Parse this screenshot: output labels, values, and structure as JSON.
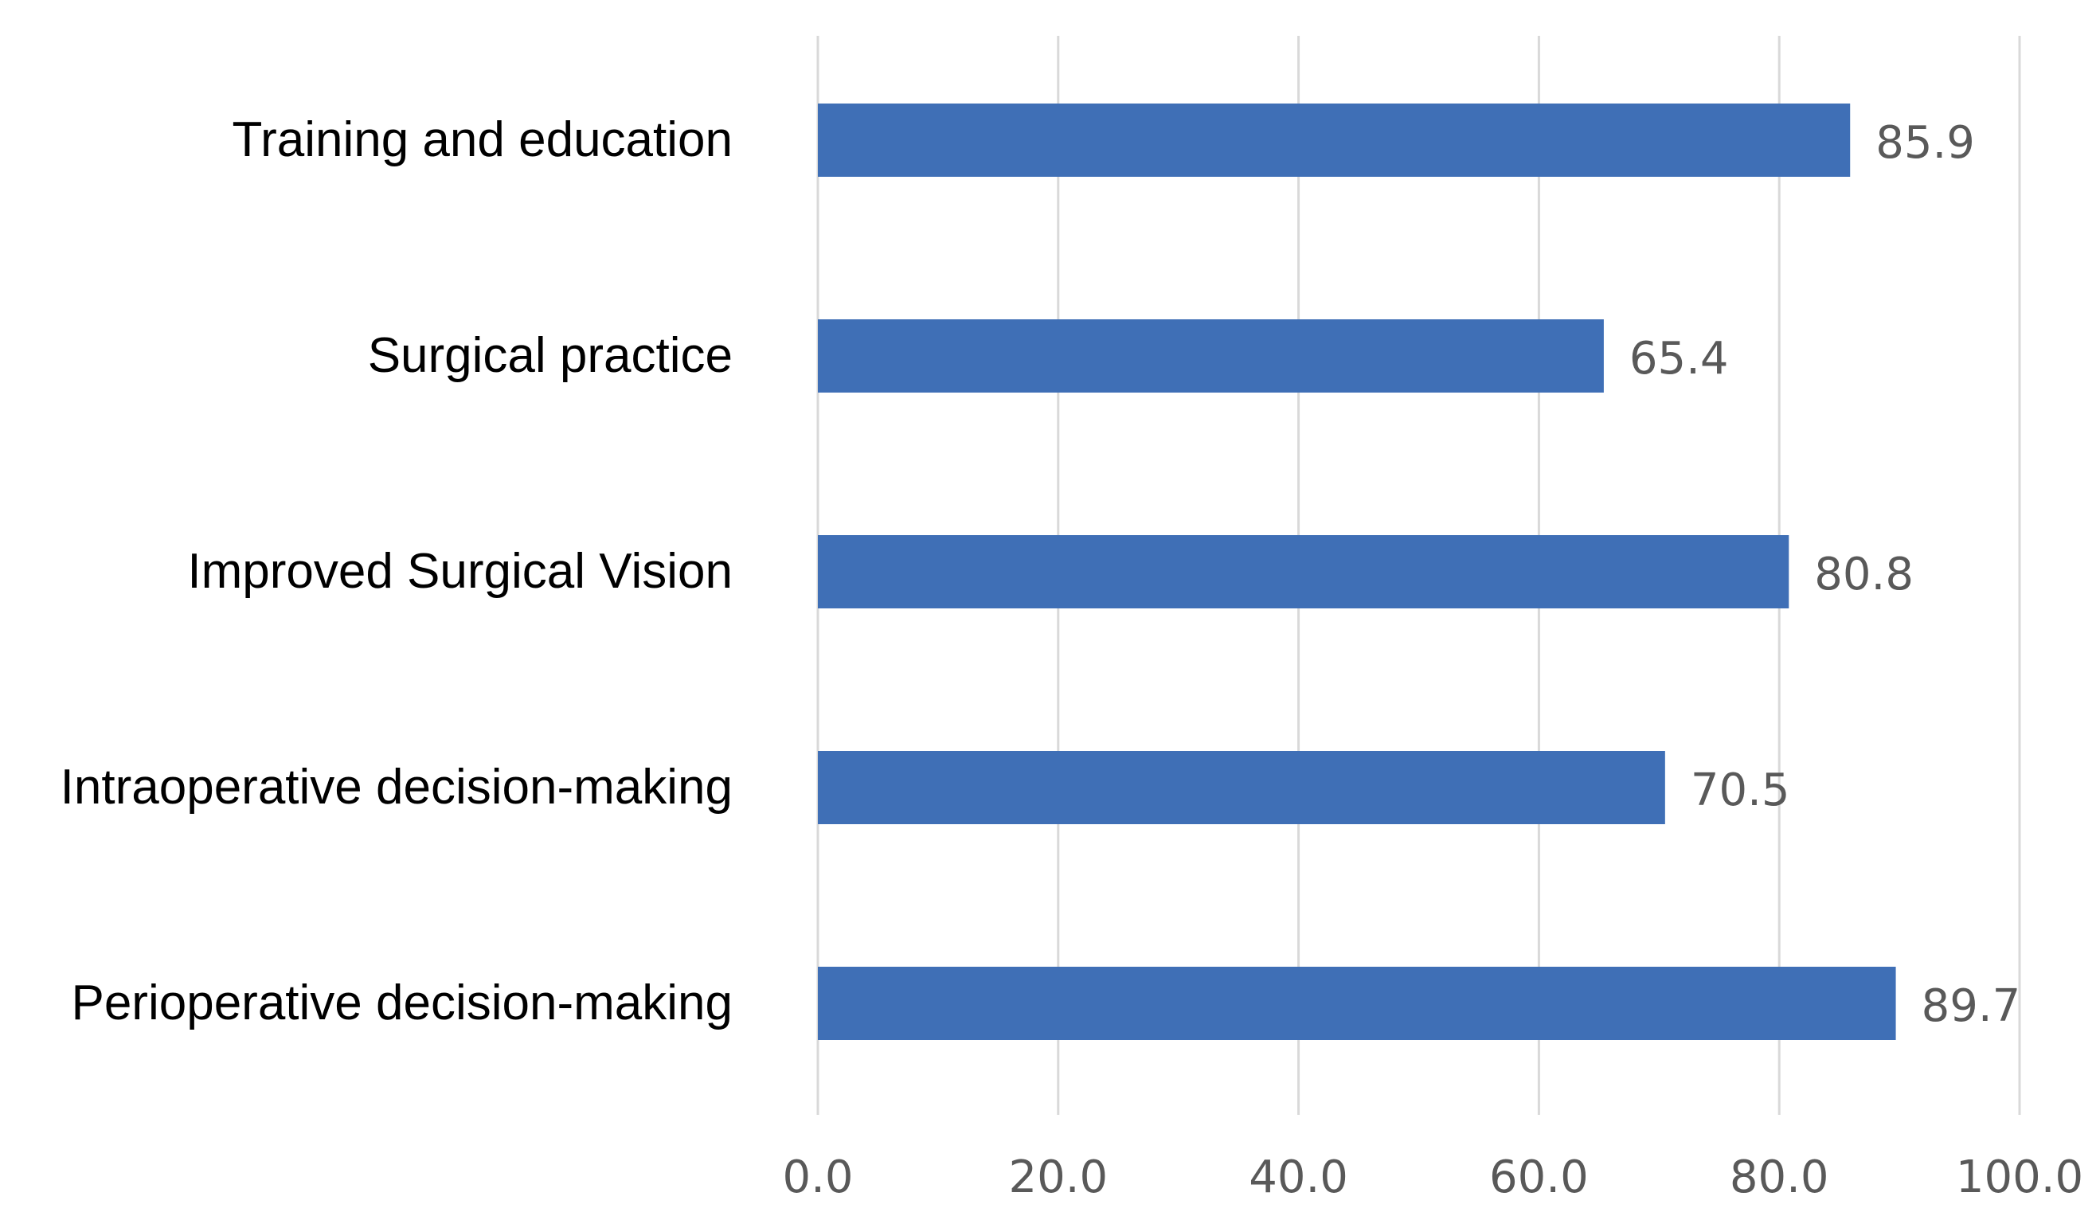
{
  "chart_data": {
    "type": "bar",
    "orientation": "horizontal",
    "categories": [
      "Training and education",
      "Surgical practice",
      "Improved Surgical Vision",
      "Intraoperative decision-making",
      "Perioperative decision-making"
    ],
    "values": [
      85.9,
      65.4,
      80.8,
      70.5,
      89.7
    ],
    "value_labels": [
      "85.9",
      "65.4",
      "80.8",
      "70.5",
      "89.7"
    ],
    "xlim": [
      0,
      100
    ],
    "x_ticks": [
      0,
      20,
      40,
      60,
      80,
      100
    ],
    "x_tick_labels": [
      "0.0",
      "20.0",
      "40.0",
      "60.0",
      "80.0",
      "100.0"
    ],
    "title": "",
    "xlabel": "",
    "ylabel": "",
    "grid": "vertical",
    "legend": "none",
    "bar_color": "#3f6fb6",
    "grid_color": "#d9d9d9",
    "label_color": "#595959"
  }
}
